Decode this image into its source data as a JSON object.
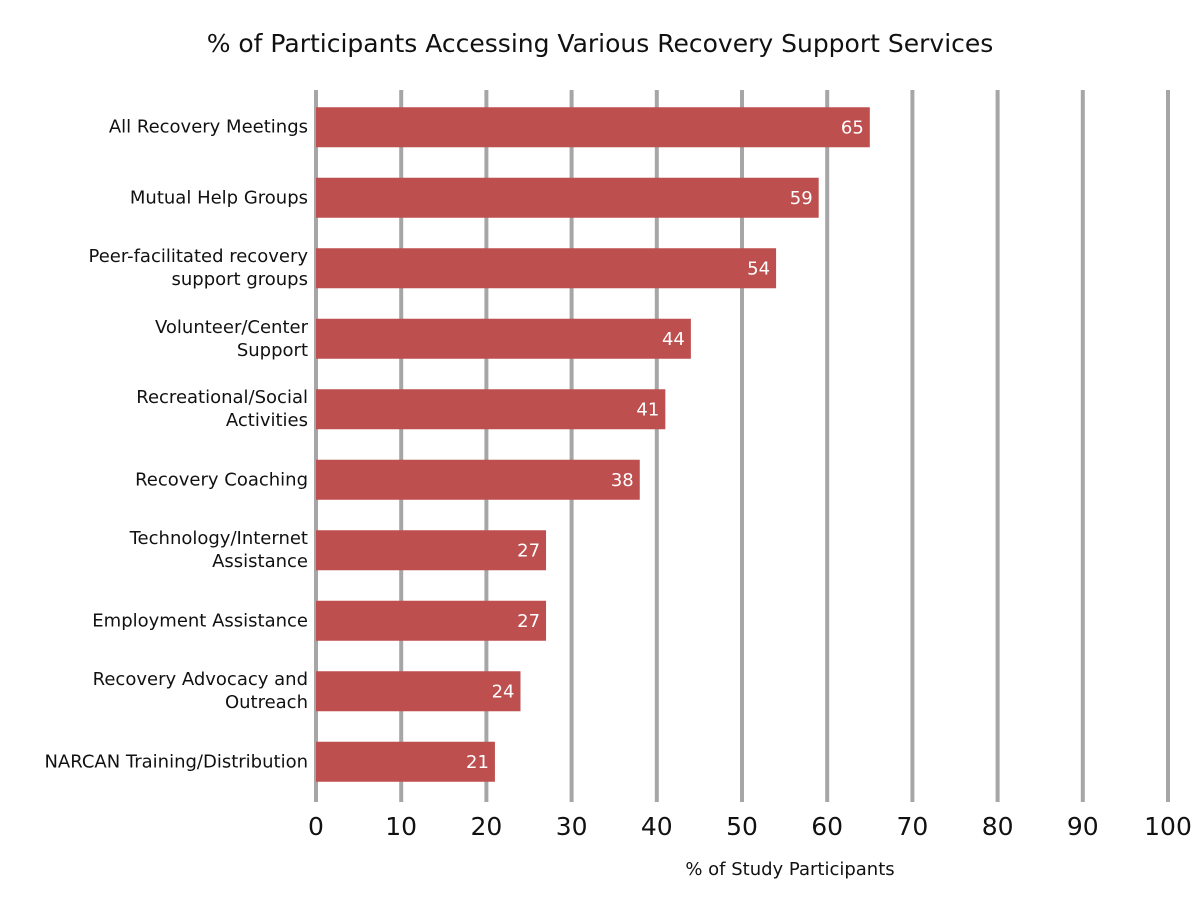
{
  "chart_data": {
    "type": "bar",
    "orientation": "horizontal",
    "title": "% of Participants Accessing Various Recovery Support Services",
    "x_label": "% of Study Participants",
    "categories": [
      "All Recovery Meetings",
      "Mutual Help Groups",
      "Peer-facilitated recovery\nsupport groups",
      "Volunteer/Center\nSupport",
      "Recreational/Social\nActivities",
      "Recovery Coaching",
      "Technology/Internet\nAssistance",
      "Employment Assistance",
      "Recovery Advocacy and\nOutreach",
      "NARCAN Training/Distribution"
    ],
    "values": [
      65,
      59,
      54,
      44,
      41,
      38,
      27,
      27,
      24,
      21
    ],
    "color": "#bd4f4f",
    "xlim": [
      0,
      100
    ],
    "xticks": [
      0,
      10,
      20,
      30,
      40,
      50,
      60,
      70,
      80,
      90,
      100
    ],
    "grid": true
  }
}
